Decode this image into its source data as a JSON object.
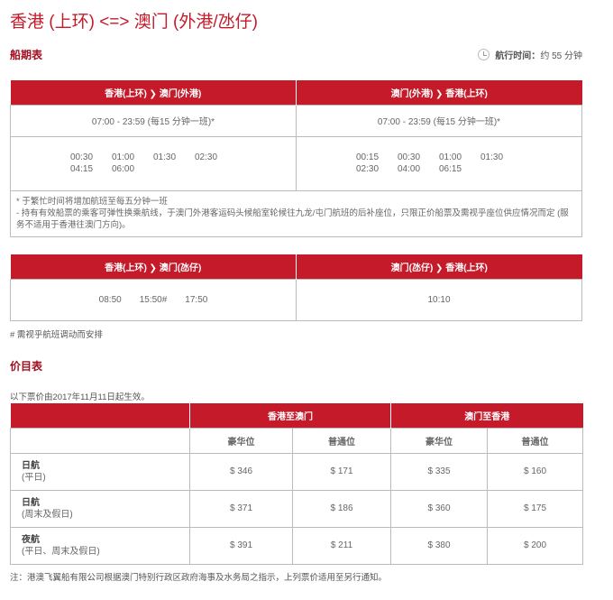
{
  "title": "香港 (上环) <=> 澳门 (外港/氹仔)",
  "schedule": {
    "heading": "船期表",
    "duration_label": "航行时间：",
    "duration_value": "约 55 分钟",
    "icon": "clock-icon"
  },
  "table1": {
    "headers": [
      "香港(上环) ❯ 澳门(外港)",
      "澳门(外港) ❯ 香港(上环)"
    ],
    "regular": [
      "07:00 - 23:59 (每15 分钟一班)*",
      "07:00 - 23:59 (每15 分钟一班)*"
    ],
    "night": [
      [
        "00:30",
        "01:00",
        "01:30",
        "02:30",
        "04:15",
        "06:00"
      ],
      [
        "00:15",
        "00:30",
        "01:00",
        "01:30",
        "02:30",
        "04:00",
        "06:15"
      ]
    ],
    "notes": [
      "* 于繁忙时间将增加航班至每五分钟一班",
      "- 持有有效船票的乘客可弹性换乘航线，于澳门外港客运码头候船室轮候往九龙/屯门航班的后补座位，只限正价船票及需视乎座位供应情况而定 (服务不适用于香港往澳门方向)。"
    ]
  },
  "table2": {
    "headers": [
      "香港(上环) ❯ 澳门(氹仔)",
      "澳门(氹仔) ❯ 香港(上环)"
    ],
    "times": [
      [
        "08:50",
        "15:50#",
        "17:50"
      ],
      [
        "10:10"
      ]
    ],
    "footnote": "# 需视乎航班调动而安排"
  },
  "fares": {
    "heading": "价目表",
    "effective": "以下票价由2017年11月11日起生效。",
    "groups": [
      "香港至澳门",
      "澳门至香港"
    ],
    "classes": [
      "豪华位",
      "普通位",
      "豪华位",
      "普通位"
    ],
    "rows": [
      {
        "name": "日航",
        "sub": "(平日)",
        "prices": [
          "$ 346",
          "$ 171",
          "$ 335",
          "$ 160"
        ]
      },
      {
        "name": "日航",
        "sub": "(周末及假日)",
        "prices": [
          "$ 371",
          "$ 186",
          "$ 360",
          "$ 175"
        ]
      },
      {
        "name": "夜航",
        "sub": "(平日、周末及假日)",
        "prices": [
          "$ 391",
          "$ 211",
          "$ 380",
          "$ 200"
        ]
      }
    ],
    "note": "注：港澳飞翼船有限公司根据澳门特别行政区政府海事及水务局之指示，上列票价适用至另行通知。"
  },
  "colors": {
    "accent": "#c41a2a"
  }
}
